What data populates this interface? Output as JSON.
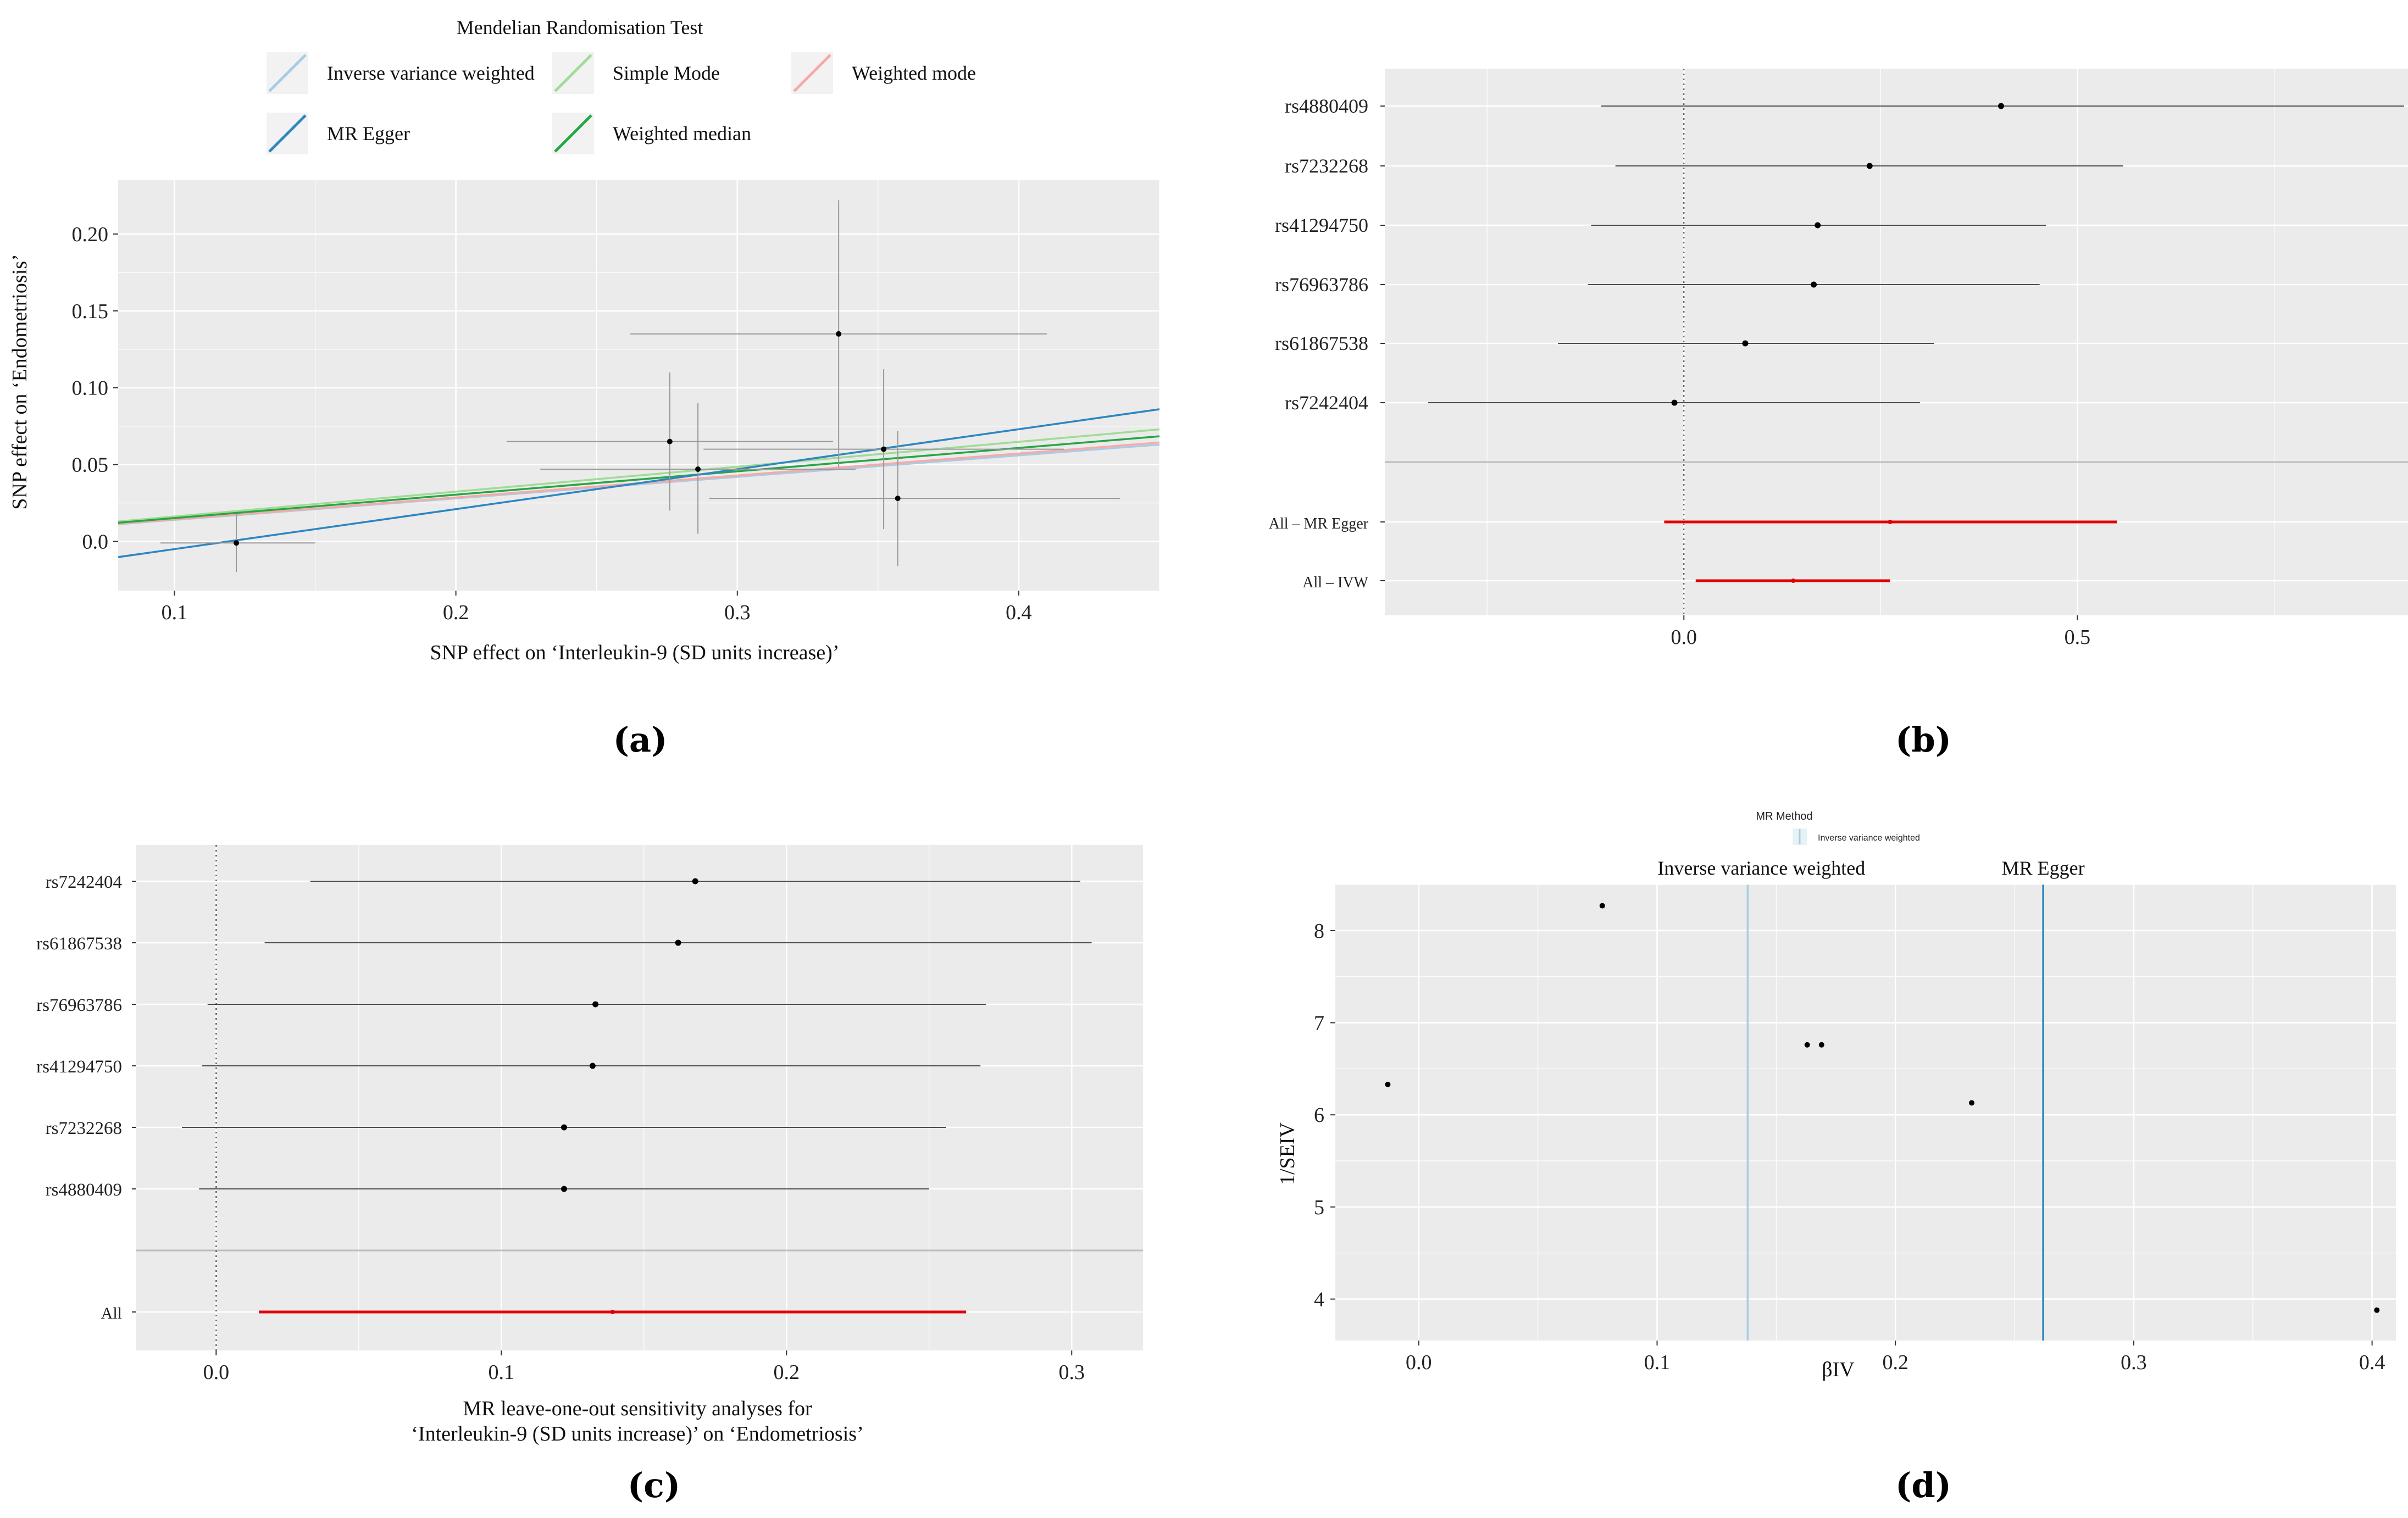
{
  "chart_data": [
    {
      "panel": "(a)",
      "type": "scatter",
      "legend_title": "Mendelian Randomisation Test",
      "legend": [
        {
          "name": "Inverse variance weighted",
          "color": "#a9cce3"
        },
        {
          "name": "Simple Mode",
          "color": "#9fdc96"
        },
        {
          "name": "Weighted mode",
          "color": "#f7a9a8"
        },
        {
          "name": "MR Egger",
          "color": "#2e86c1"
        },
        {
          "name": "Weighted median",
          "color": "#27a644"
        }
      ],
      "xlabel": "SNP effect on ‘Interleukin-9 (SD units increase)’",
      "ylabel": "SNP effect on ‘Endometriosis’",
      "xlim": [
        0.08,
        0.45
      ],
      "ylim": [
        -0.032,
        0.235
      ],
      "x_ticks": [
        0.1,
        0.2,
        0.3,
        0.4
      ],
      "x_tick_labels": [
        "0.1",
        "0.2",
        "0.3",
        "0.4"
      ],
      "y_ticks": [
        0.0,
        0.05,
        0.1,
        0.15,
        0.2
      ],
      "y_tick_labels": [
        "0.0",
        "0.05",
        "0.10",
        "0.15",
        "0.20"
      ],
      "points": [
        {
          "x": 0.122,
          "y": -0.001,
          "xlo": 0.095,
          "xhi": 0.15,
          "ylo": -0.02,
          "yhi": 0.018
        },
        {
          "x": 0.276,
          "y": 0.065,
          "xlo": 0.218,
          "xhi": 0.334,
          "ylo": 0.02,
          "yhi": 0.11
        },
        {
          "x": 0.286,
          "y": 0.047,
          "xlo": 0.23,
          "xhi": 0.342,
          "ylo": 0.005,
          "yhi": 0.09
        },
        {
          "x": 0.336,
          "y": 0.135,
          "xlo": 0.262,
          "xhi": 0.41,
          "ylo": 0.048,
          "yhi": 0.222
        },
        {
          "x": 0.352,
          "y": 0.06,
          "xlo": 0.288,
          "xhi": 0.416,
          "ylo": 0.008,
          "yhi": 0.112
        },
        {
          "x": 0.357,
          "y": 0.028,
          "xlo": 0.29,
          "xhi": 0.436,
          "ylo": -0.016,
          "yhi": 0.072
        }
      ],
      "lines": [
        {
          "name": "Inverse variance weighted",
          "intercept": 0.0,
          "slope": 0.14
        },
        {
          "name": "Simple Mode",
          "intercept": 0.0,
          "slope": 0.162
        },
        {
          "name": "Weighted mode",
          "intercept": 0.0,
          "slope": 0.143
        },
        {
          "name": "MR Egger",
          "intercept": -0.031,
          "slope": 0.26
        },
        {
          "name": "Weighted median",
          "intercept": 0.0,
          "slope": 0.152
        }
      ]
    },
    {
      "panel": "(b)",
      "type": "forest",
      "xlim": [
        -0.38,
        0.92
      ],
      "x_ticks": [
        0.0,
        0.5
      ],
      "x_tick_labels": [
        "0.0",
        "0.5"
      ],
      "rows": [
        {
          "label": "rs4880409",
          "est": 0.403,
          "lo": -0.105,
          "hi": 0.915,
          "summary": false
        },
        {
          "label": "rs7232268",
          "est": 0.236,
          "lo": -0.087,
          "hi": 0.558,
          "summary": false
        },
        {
          "label": "rs41294750",
          "est": 0.17,
          "lo": -0.118,
          "hi": 0.46,
          "summary": false
        },
        {
          "label": "rs76963786",
          "est": 0.165,
          "lo": -0.122,
          "hi": 0.452,
          "summary": false
        },
        {
          "label": "rs61867538",
          "est": 0.078,
          "lo": -0.16,
          "hi": 0.318,
          "summary": false
        },
        {
          "label": "rs7242404",
          "est": -0.012,
          "lo": -0.325,
          "hi": 0.3,
          "summary": false
        },
        {
          "label": "All – MR Egger",
          "est": 0.262,
          "lo": -0.025,
          "hi": 0.55,
          "summary": true
        },
        {
          "label": "All – IVW",
          "est": 0.139,
          "lo": 0.015,
          "hi": 0.262,
          "summary": true
        }
      ]
    },
    {
      "panel": "(c)",
      "type": "forest",
      "xlabel_line1": "MR leave-one-out sensitivity analyses for",
      "xlabel_line2": "‘Interleukin-9 (SD units increase)’ on ‘Endometriosis’",
      "xlim": [
        -0.028,
        0.325
      ],
      "x_ticks": [
        0.0,
        0.1,
        0.2,
        0.3
      ],
      "x_tick_labels": [
        "0.0",
        "0.1",
        "0.2",
        "0.3"
      ],
      "rows": [
        {
          "label": "rs7242404",
          "est": 0.168,
          "lo": 0.033,
          "hi": 0.303,
          "summary": false
        },
        {
          "label": "rs61867538",
          "est": 0.162,
          "lo": 0.017,
          "hi": 0.307,
          "summary": false
        },
        {
          "label": "rs76963786",
          "est": 0.133,
          "lo": -0.003,
          "hi": 0.27,
          "summary": false
        },
        {
          "label": "rs41294750",
          "est": 0.132,
          "lo": -0.005,
          "hi": 0.268,
          "summary": false
        },
        {
          "label": "rs7232268",
          "est": 0.122,
          "lo": -0.012,
          "hi": 0.256,
          "summary": false
        },
        {
          "label": "rs4880409",
          "est": 0.122,
          "lo": -0.006,
          "hi": 0.25,
          "summary": false
        },
        {
          "label": "All",
          "est": 0.139,
          "lo": 0.015,
          "hi": 0.263,
          "summary": true
        }
      ]
    },
    {
      "panel": "(d)",
      "type": "scatter",
      "legend_title": "MR Method",
      "legend_item": "Inverse variance weighted",
      "xlabel": "βIV",
      "ylabel": "1/SEIV",
      "xlim": [
        -0.035,
        0.41
      ],
      "ylim": [
        3.55,
        8.5
      ],
      "x_ticks": [
        0.0,
        0.1,
        0.2,
        0.3,
        0.4
      ],
      "x_tick_labels": [
        "0.0",
        "0.1",
        "0.2",
        "0.3",
        "0.4"
      ],
      "y_ticks": [
        4,
        5,
        6,
        7,
        8
      ],
      "y_tick_labels": [
        "4",
        "5",
        "6",
        "7",
        "8"
      ],
      "points": [
        {
          "x": -0.013,
          "y": 6.33
        },
        {
          "x": 0.077,
          "y": 8.27
        },
        {
          "x": 0.163,
          "y": 6.76
        },
        {
          "x": 0.169,
          "y": 6.76
        },
        {
          "x": 0.232,
          "y": 6.13
        },
        {
          "x": 0.402,
          "y": 3.88
        }
      ],
      "vlines": [
        {
          "name": "Inverse variance weighted",
          "x": 0.138,
          "color": "#a9cce3"
        },
        {
          "name": "MR Egger",
          "x": 0.262,
          "color": "#2e86c1"
        }
      ]
    }
  ],
  "panel_labels": [
    "(a)",
    "(b)",
    "(c)",
    "(d)"
  ]
}
